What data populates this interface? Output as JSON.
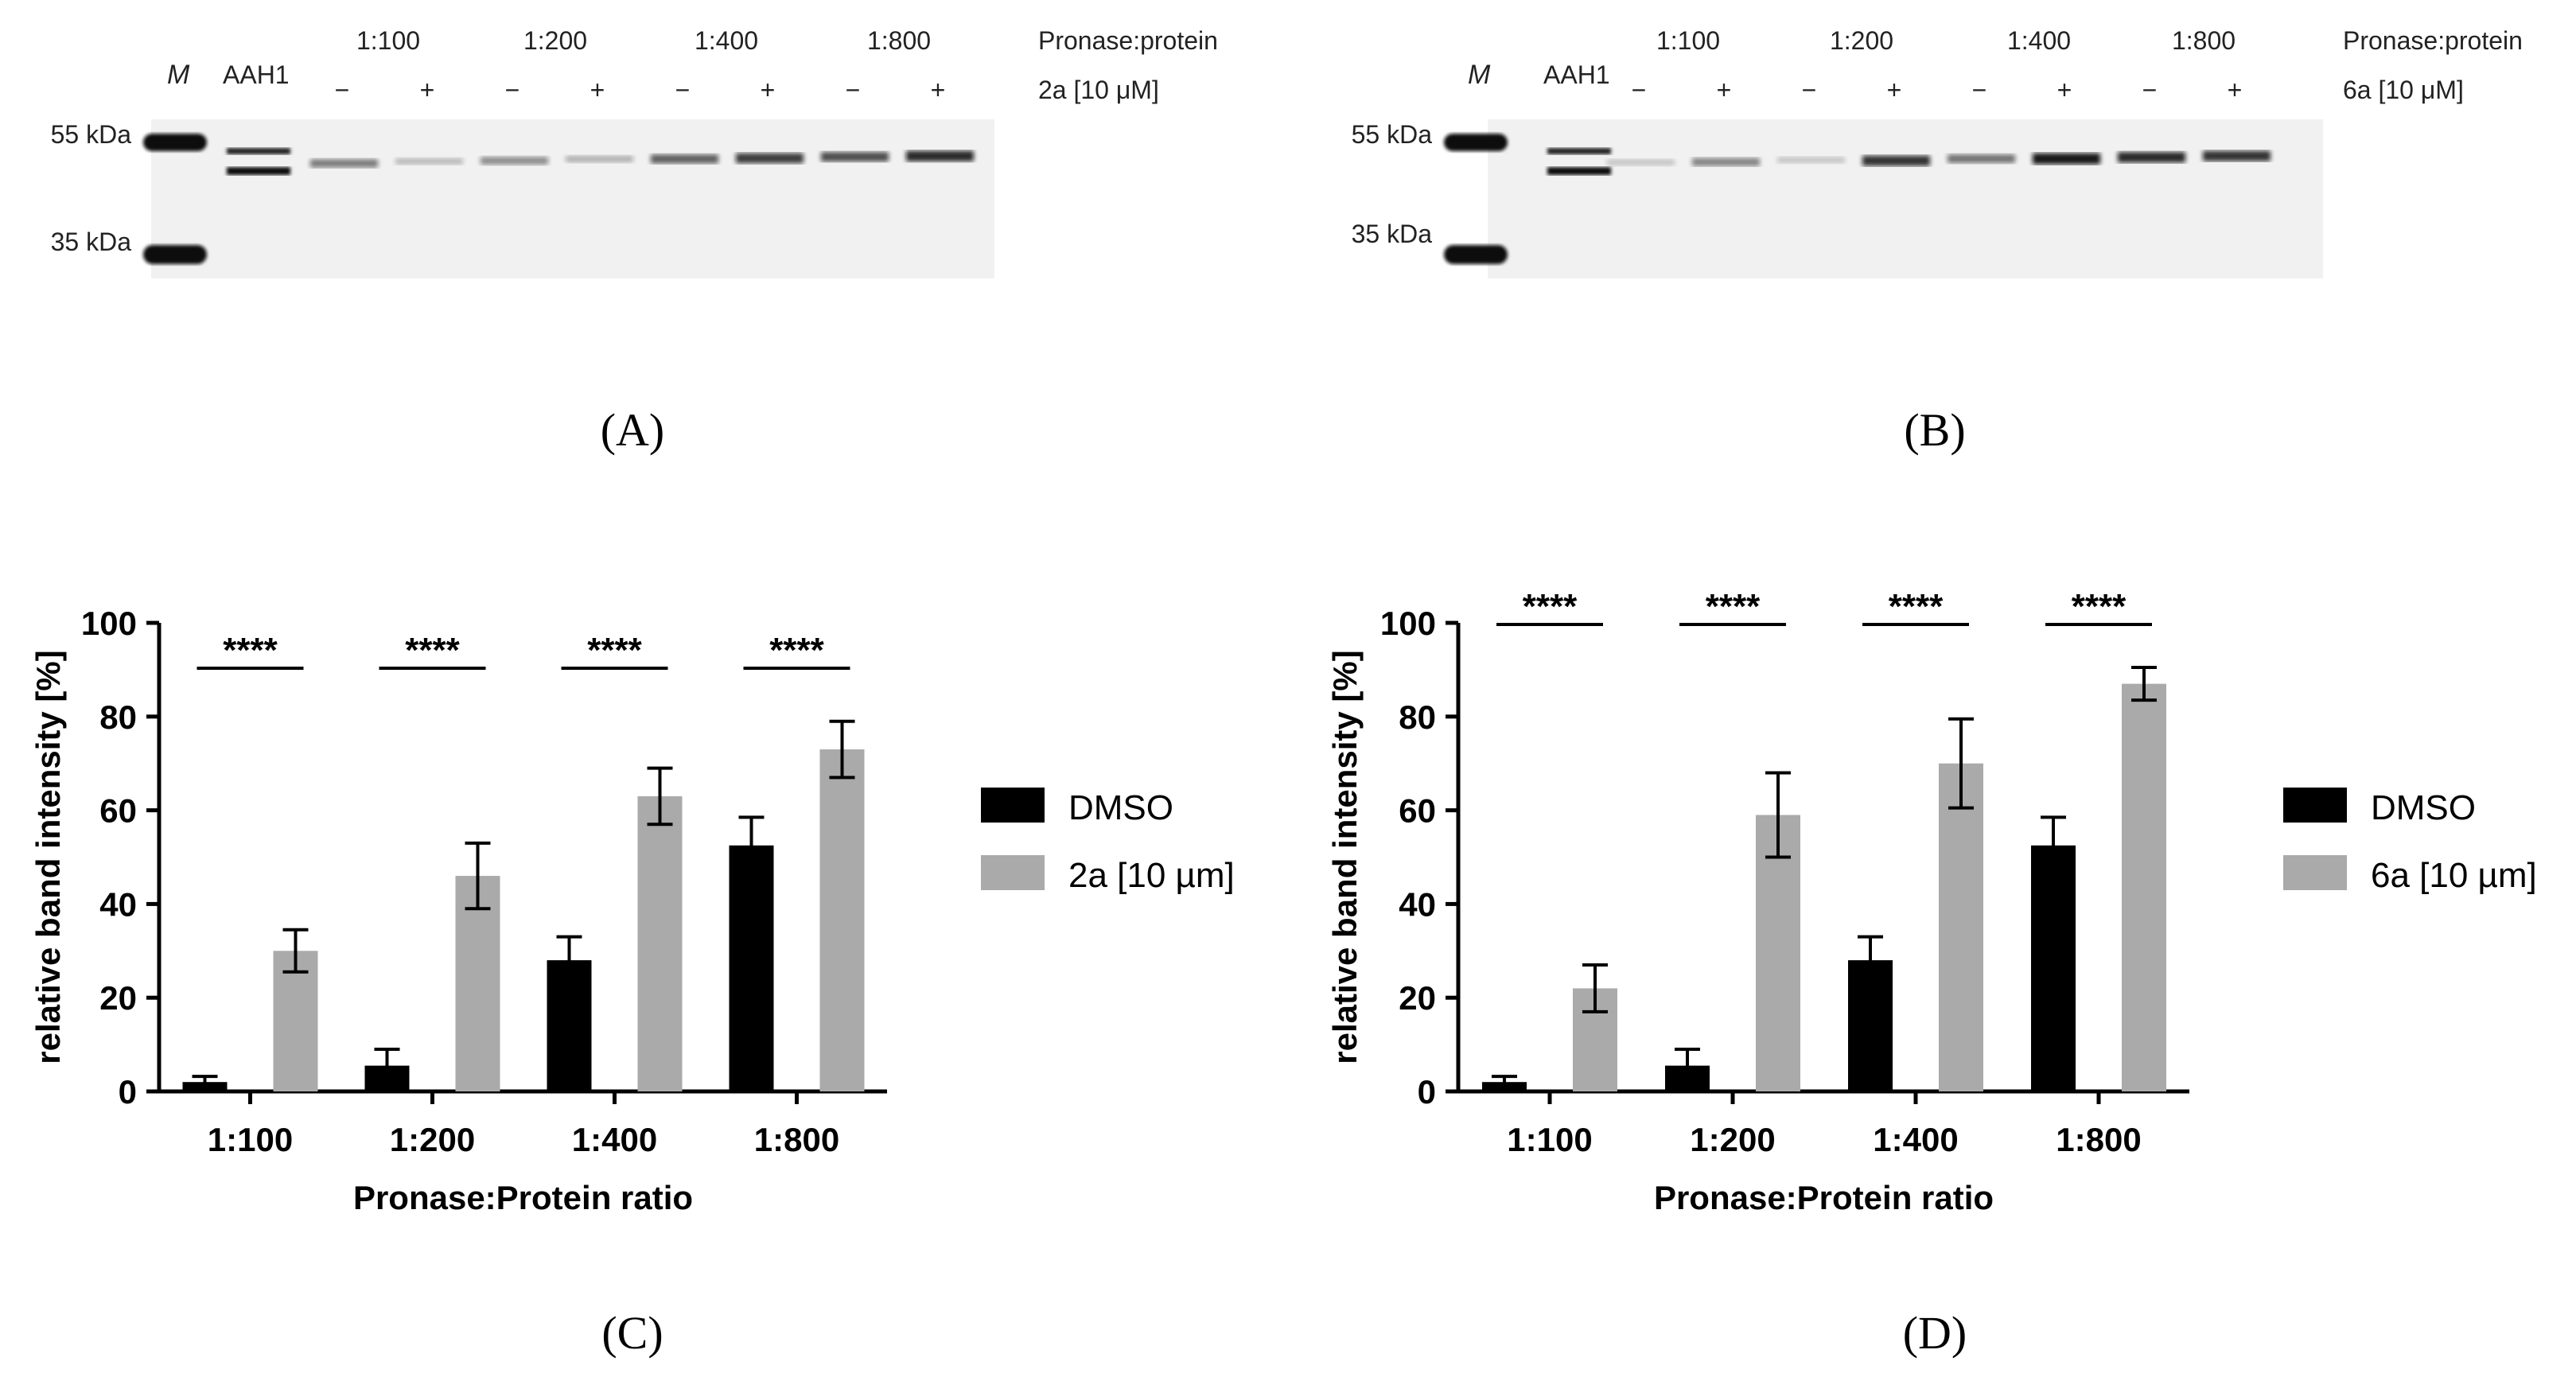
{
  "gels": [
    {
      "letter": "(A)",
      "marker_label": "M",
      "aah1_label": "AAH1",
      "ratios": [
        "1:100",
        "1:200",
        "1:400",
        "1:800"
      ],
      "signs": [
        "−",
        "+",
        "−",
        "+",
        "−",
        "+",
        "−",
        "+"
      ],
      "row1_label": "Pronase:protein",
      "row2_label": "2a [10 μM]",
      "kda": [
        "55 kDa",
        "35 kDa"
      ],
      "band_strengths": [
        0.45,
        0.1,
        0.35,
        0.15,
        0.6,
        0.8,
        0.7,
        0.9
      ]
    },
    {
      "letter": "(B)",
      "marker_label": "M",
      "aah1_label": "AAH1",
      "ratios": [
        "1:100",
        "1:200",
        "1:400",
        "1:800"
      ],
      "signs": [
        "−",
        "+",
        "−",
        "+",
        "−",
        "+",
        "−",
        "+"
      ],
      "row1_label": "Pronase:protein",
      "row2_label": "6a [10 μM]",
      "kda": [
        "55 kDa",
        "35 kDa"
      ],
      "band_strengths": [
        0.05,
        0.4,
        0.05,
        0.85,
        0.5,
        1.0,
        0.9,
        0.85
      ]
    }
  ],
  "chart_data": [
    {
      "type": "bar",
      "letter": "(C)",
      "categories": [
        "1:100",
        "1:200",
        "1:400",
        "1:800"
      ],
      "xlabel": "Pronase:Protein ratio",
      "ylabel": "relative band intensity [%]",
      "ylim": [
        0,
        100
      ],
      "yticks": [
        0,
        20,
        40,
        60,
        80,
        100
      ],
      "significance": [
        "****",
        "****",
        "****",
        "****"
      ],
      "series": [
        {
          "name": "DMSO",
          "color": "#000000",
          "values": [
            2,
            5.5,
            28,
            52.5
          ],
          "errors": [
            1.2,
            3.5,
            5,
            6
          ]
        },
        {
          "name": "2a [10 µm]",
          "color": "#aaaaaa",
          "values": [
            30,
            46,
            63,
            73
          ],
          "errors": [
            4.5,
            7,
            6,
            6
          ]
        }
      ],
      "legend": "right"
    },
    {
      "type": "bar",
      "letter": "(D)",
      "categories": [
        "1:100",
        "1:200",
        "1:400",
        "1:800"
      ],
      "xlabel": "Pronase:Protein ratio",
      "ylabel": "relative band intensity [%]",
      "ylim": [
        0,
        100
      ],
      "yticks": [
        0,
        20,
        40,
        60,
        80,
        100
      ],
      "significance": [
        "****",
        "****",
        "****",
        "****"
      ],
      "series": [
        {
          "name": "DMSO",
          "color": "#000000",
          "values": [
            2,
            5.5,
            28,
            52.5
          ],
          "errors": [
            1.2,
            3.5,
            5,
            6
          ]
        },
        {
          "name": "6a [10 µm]",
          "color": "#aaaaaa",
          "values": [
            22,
            59,
            70,
            87
          ],
          "errors": [
            5,
            9,
            9.5,
            3.5
          ]
        }
      ],
      "legend": "right"
    }
  ]
}
